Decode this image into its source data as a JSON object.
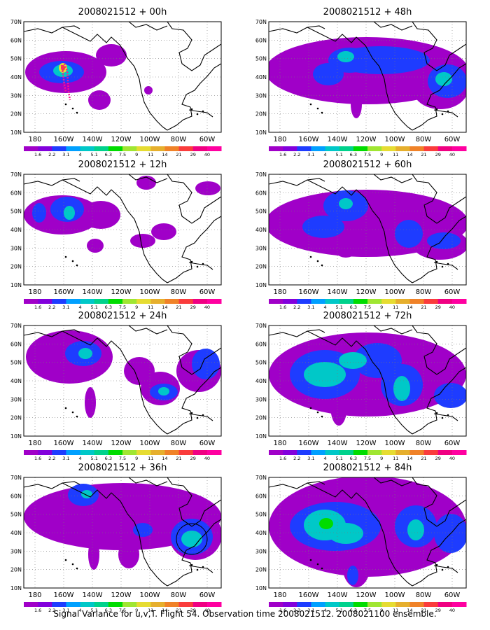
{
  "figure": {
    "caption": "Signal Variance for u,v,T. Flight 54. Observation time 2008021512. 2008021100 ensemble.",
    "lat_labels": [
      "70N",
      "60N",
      "50N",
      "40N",
      "30N",
      "20N",
      "10N"
    ],
    "lon_labels": [
      "180",
      "160W",
      "140W",
      "120W",
      "100W",
      "80W",
      "60W"
    ],
    "colorbar_labels": [
      "1.6",
      "2.2",
      "3.1",
      "4",
      "5.1",
      "6.3",
      "7.5",
      "9",
      "11",
      "14",
      "21",
      "29",
      "40"
    ],
    "colorbar_colors": [
      "#a000c8",
      "#8200dc",
      "#1e3cff",
      "#00a0ff",
      "#00c8c8",
      "#00d28c",
      "#00dc00",
      "#a0e632",
      "#e6dc32",
      "#e6af2d",
      "#f08228",
      "#fa3c3c",
      "#f00082",
      "#ff00a0"
    ],
    "panels": [
      {
        "title": "2008021512 + 00h"
      },
      {
        "title": "2008021512 + 48h"
      },
      {
        "title": "2008021512 + 12h"
      },
      {
        "title": "2008021512 + 60h"
      },
      {
        "title": "2008021512 + 24h"
      },
      {
        "title": "2008021512 + 72h"
      },
      {
        "title": "2008021512 + 36h"
      },
      {
        "title": "2008021512 + 84h"
      }
    ]
  }
}
